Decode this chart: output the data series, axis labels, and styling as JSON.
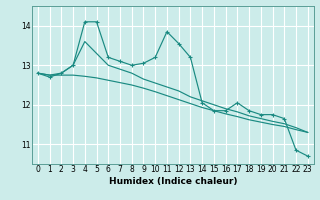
{
  "xlabel": "Humidex (Indice chaleur)",
  "bg_color": "#ccecea",
  "grid_color": "#ffffff",
  "line_color": "#1a8a82",
  "xlim": [
    -0.5,
    23.5
  ],
  "ylim": [
    10.5,
    14.5
  ],
  "yticks": [
    11,
    12,
    13,
    14
  ],
  "xticks": [
    0,
    1,
    2,
    3,
    4,
    5,
    6,
    7,
    8,
    9,
    10,
    11,
    12,
    13,
    14,
    15,
    16,
    17,
    18,
    19,
    20,
    21,
    22,
    23
  ],
  "series_jagged": [
    12.8,
    12.7,
    12.8,
    13.0,
    14.1,
    14.1,
    13.2,
    13.1,
    13.0,
    13.05,
    13.2,
    13.85,
    13.55,
    13.2,
    12.05,
    11.85,
    11.85,
    12.05,
    11.85,
    11.75,
    11.75,
    11.65,
    10.85,
    10.7
  ],
  "series_mid": [
    12.8,
    12.75,
    12.8,
    13.0,
    13.6,
    13.3,
    13.0,
    12.9,
    12.8,
    12.65,
    12.55,
    12.45,
    12.35,
    12.2,
    12.1,
    12.0,
    11.9,
    11.82,
    11.72,
    11.65,
    11.58,
    11.52,
    11.42,
    11.3
  ],
  "series_flat": [
    12.8,
    12.75,
    12.75,
    12.75,
    12.72,
    12.68,
    12.62,
    12.56,
    12.5,
    12.42,
    12.33,
    12.23,
    12.13,
    12.03,
    11.93,
    11.85,
    11.77,
    11.7,
    11.62,
    11.56,
    11.5,
    11.45,
    11.37,
    11.3
  ]
}
